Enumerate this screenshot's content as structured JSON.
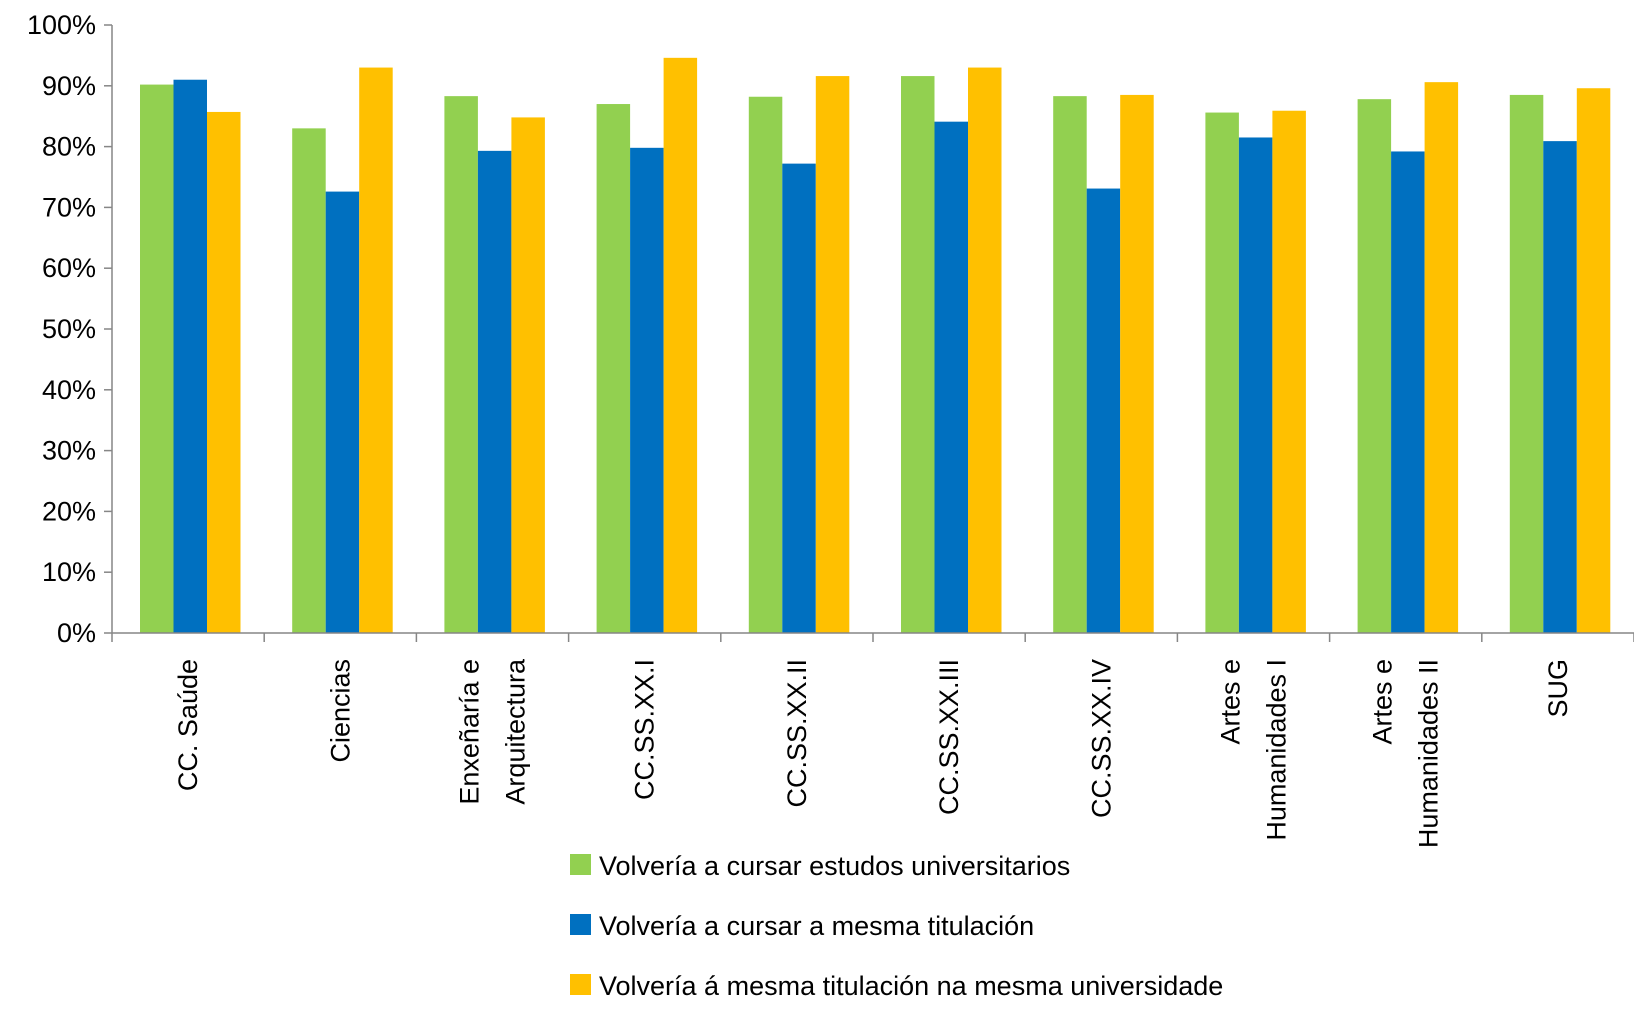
{
  "chart_data": {
    "type": "bar",
    "categories": [
      [
        "CC. Saúde"
      ],
      [
        "Ciencias"
      ],
      [
        "Enxeñaría e",
        "Arquitectura"
      ],
      [
        "CC.SS.XX.I"
      ],
      [
        "CC.SS.XX.II"
      ],
      [
        "CC.SS.XX.III"
      ],
      [
        "CC.SS.XX.IV"
      ],
      [
        "Artes e",
        "Humanidades I"
      ],
      [
        "Artes e",
        "Humanidades II"
      ],
      [
        "SUG"
      ]
    ],
    "series": [
      {
        "name": "Volvería a cursar estudos universitarios",
        "color": "#92d050",
        "values": [
          90.2,
          83.0,
          88.3,
          87.0,
          88.2,
          91.6,
          88.3,
          85.6,
          87.8,
          88.5
        ]
      },
      {
        "name": "Volvería a cursar a mesma titulación",
        "color": "#0070c0",
        "values": [
          91.0,
          72.6,
          79.3,
          79.8,
          77.2,
          84.1,
          73.1,
          81.5,
          79.2,
          80.9
        ]
      },
      {
        "name": "Volvería á mesma titulación na mesma universidade",
        "color": "#ffc000",
        "values": [
          85.7,
          93.0,
          84.8,
          94.6,
          91.6,
          93.0,
          88.5,
          85.9,
          90.6,
          89.6
        ]
      }
    ],
    "y_ticks": [
      "0%",
      "10%",
      "20%",
      "30%",
      "40%",
      "50%",
      "60%",
      "70%",
      "80%",
      "90%",
      "100%"
    ],
    "ylim": [
      0,
      100
    ],
    "grid": false,
    "legend_position": "bottom"
  }
}
